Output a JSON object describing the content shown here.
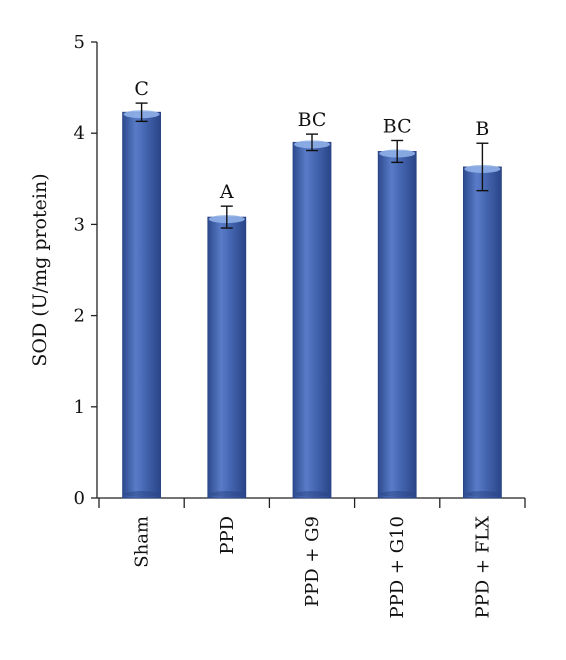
{
  "chart_data": {
    "type": "bar",
    "title": "",
    "xlabel": "",
    "ylabel": "SOD (U/mg protein)",
    "ylim": [
      0,
      5
    ],
    "yticks": [
      0,
      1,
      2,
      3,
      4,
      5
    ],
    "grid": false,
    "legend": "none",
    "categories": [
      "Sham",
      "PPD",
      "PPD + G9",
      "PPD + G10",
      "PPD + FLX"
    ],
    "values": [
      4.23,
      3.08,
      3.9,
      3.8,
      3.63
    ],
    "errors": [
      0.1,
      0.12,
      0.09,
      0.12,
      0.26
    ],
    "significance_labels": [
      "C",
      "A",
      "BC",
      "BC",
      "B"
    ],
    "bar_color": "#3d5da8",
    "bar_highlight": "#6f8fd6",
    "bar_cap_color": "#8fb0e8"
  }
}
